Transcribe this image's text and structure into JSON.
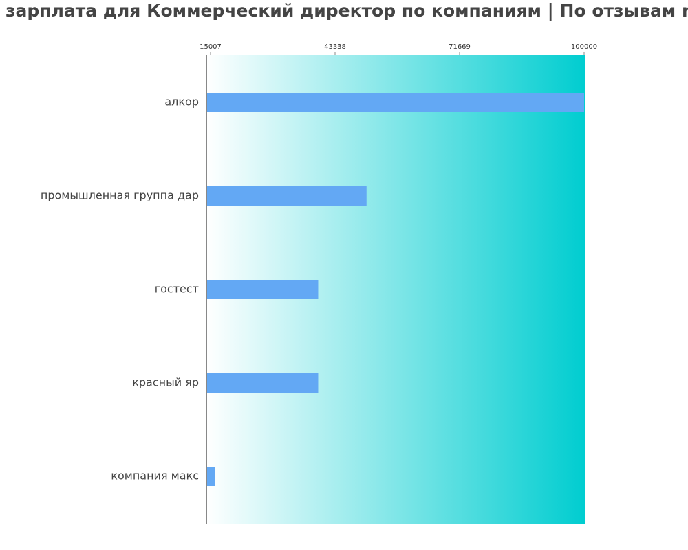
{
  "chart_data": {
    "type": "bar",
    "orientation": "horizontal",
    "title": "зарплата для Коммерческий директор по компаниям  | По отзывам nahimo.ru",
    "categories": [
      "алкор",
      "промышленная группа дар",
      "гостест",
      "красный яр",
      "компания макс"
    ],
    "values": [
      100000,
      50500,
      39500,
      39500,
      16000
    ],
    "xlim": [
      15007,
      100000
    ],
    "xticks": [
      "15007",
      "43338",
      "71669",
      "100000"
    ],
    "xtick_values": [
      15007,
      43338,
      71669,
      100000
    ],
    "xlabel": "",
    "ylabel": "",
    "grid": false,
    "legend": "none",
    "colors": {
      "bar": "#63a8f4",
      "gradient_start": "#ffffff",
      "gradient_end": "#00cdd0",
      "text": "#444444",
      "axis": "#888888"
    }
  }
}
